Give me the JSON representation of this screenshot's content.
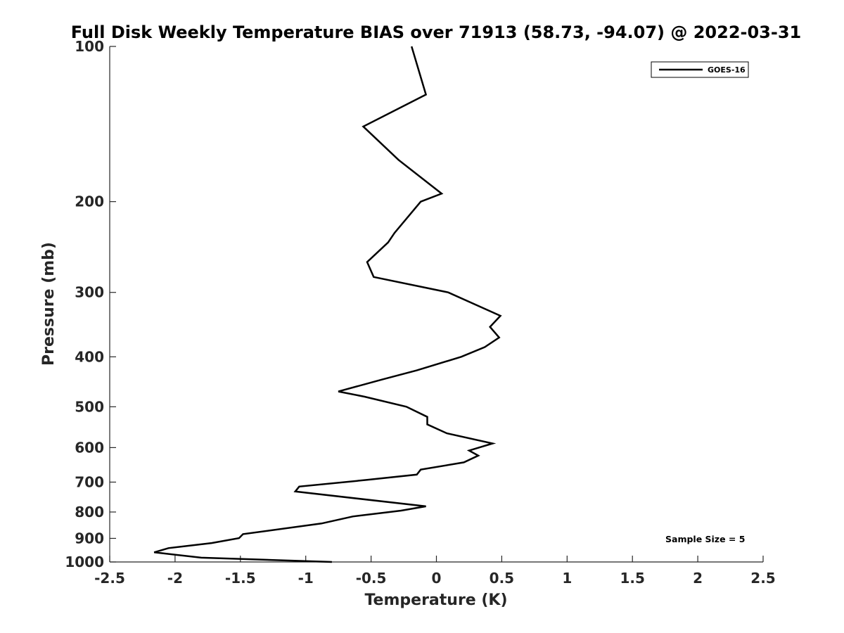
{
  "chart_data": {
    "type": "line",
    "title": "Full Disk Weekly Temperature BIAS over 71913 (58.73, -94.07) @ 2022-03-31",
    "xlabel": "Temperature (K)",
    "ylabel": "Pressure (mb)",
    "xlim": [
      -2.5,
      2.5
    ],
    "ylim": [
      100,
      1000
    ],
    "y_scale": "log",
    "y_reversed": true,
    "x_ticks": [
      "-2.5",
      "-2",
      "-1.5",
      "-1",
      "-0.5",
      "0",
      "0.5",
      "1",
      "1.5",
      "2",
      "2.5"
    ],
    "y_ticks": [
      "100",
      "200",
      "300",
      "400",
      "500",
      "600",
      "700",
      "800",
      "900",
      "1000"
    ],
    "grid": false,
    "legend_position": "top-right",
    "annotation": "Sample Size = 5",
    "series": [
      {
        "name": "GOES-16",
        "color": "#000000",
        "points": [
          {
            "x": -0.19,
            "y": 100
          },
          {
            "x": -0.08,
            "y": 124
          },
          {
            "x": -0.56,
            "y": 143
          },
          {
            "x": -0.29,
            "y": 166
          },
          {
            "x": 0.04,
            "y": 193
          },
          {
            "x": -0.12,
            "y": 200
          },
          {
            "x": -0.32,
            "y": 230
          },
          {
            "x": -0.37,
            "y": 240
          },
          {
            "x": -0.53,
            "y": 262
          },
          {
            "x": -0.48,
            "y": 280
          },
          {
            "x": 0.09,
            "y": 300
          },
          {
            "x": 0.49,
            "y": 333
          },
          {
            "x": 0.41,
            "y": 350
          },
          {
            "x": 0.48,
            "y": 367
          },
          {
            "x": 0.37,
            "y": 383
          },
          {
            "x": 0.19,
            "y": 400
          },
          {
            "x": -0.15,
            "y": 425
          },
          {
            "x": -0.42,
            "y": 443
          },
          {
            "x": -0.75,
            "y": 467
          },
          {
            "x": -0.55,
            "y": 478
          },
          {
            "x": -0.23,
            "y": 500
          },
          {
            "x": -0.07,
            "y": 523
          },
          {
            "x": -0.07,
            "y": 541
          },
          {
            "x": 0.08,
            "y": 563
          },
          {
            "x": 0.43,
            "y": 589
          },
          {
            "x": 0.25,
            "y": 608
          },
          {
            "x": 0.32,
            "y": 622
          },
          {
            "x": 0.21,
            "y": 641
          },
          {
            "x": -0.12,
            "y": 662
          },
          {
            "x": -0.15,
            "y": 677
          },
          {
            "x": -0.53,
            "y": 693
          },
          {
            "x": -1.05,
            "y": 714
          },
          {
            "x": -1.08,
            "y": 730
          },
          {
            "x": -0.08,
            "y": 780
          },
          {
            "x": -0.27,
            "y": 795
          },
          {
            "x": -0.64,
            "y": 816
          },
          {
            "x": -0.88,
            "y": 842
          },
          {
            "x": -1.48,
            "y": 883
          },
          {
            "x": -1.51,
            "y": 899
          },
          {
            "x": -1.72,
            "y": 919
          },
          {
            "x": -2.05,
            "y": 940
          },
          {
            "x": -2.16,
            "y": 958
          },
          {
            "x": -1.8,
            "y": 981
          },
          {
            "x": -0.8,
            "y": 1000
          }
        ]
      }
    ]
  }
}
